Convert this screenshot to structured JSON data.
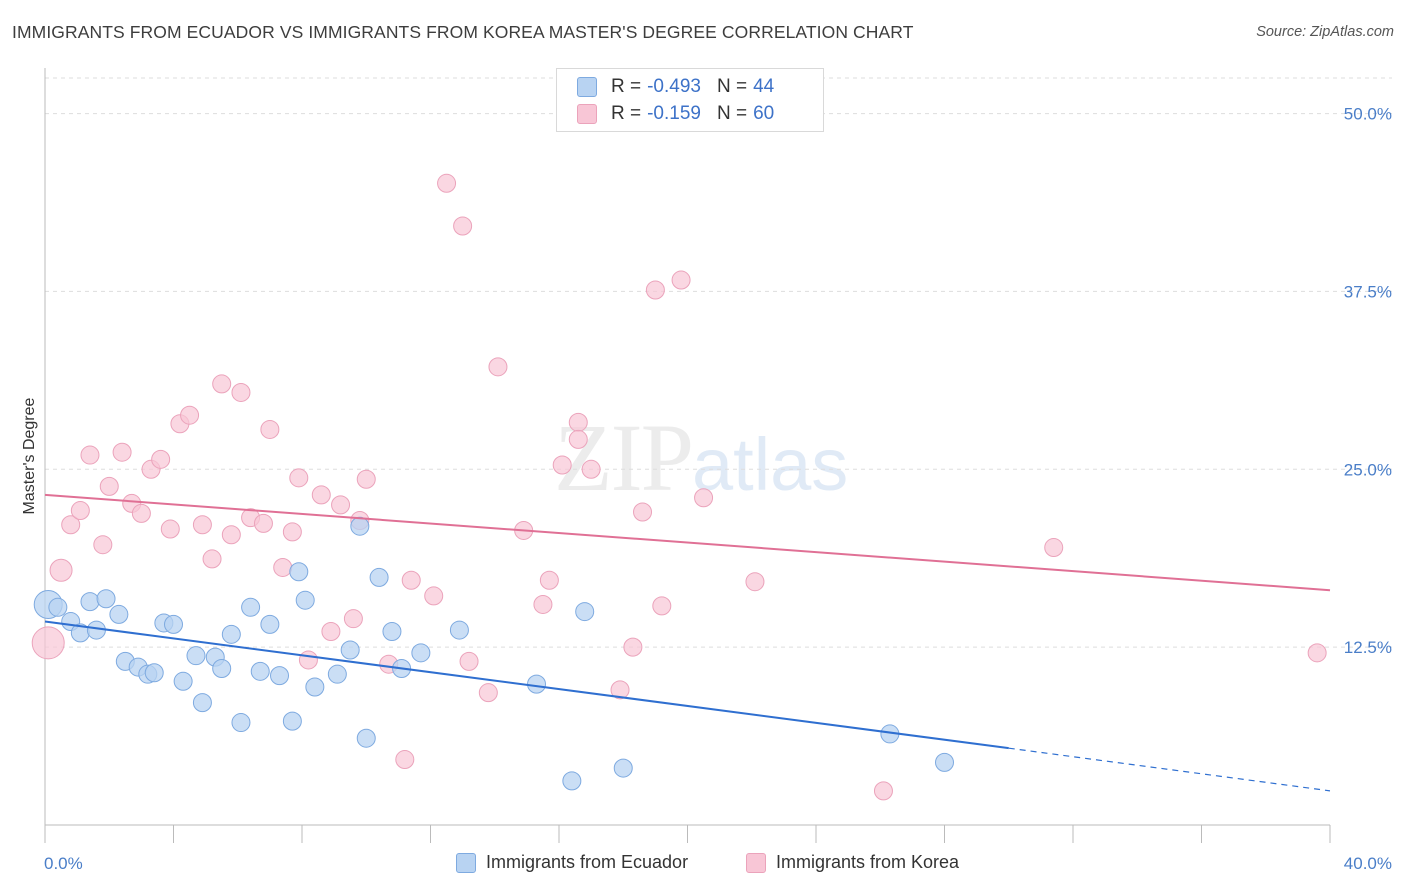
{
  "title": "IMMIGRANTS FROM ECUADOR VS IMMIGRANTS FROM KOREA MASTER'S DEGREE CORRELATION CHART",
  "source": "Source: ZipAtlas.com",
  "watermark": {
    "zip": "ZIP",
    "atlas": "atlas"
  },
  "legend": {
    "ecuador": {
      "r_label": "R =",
      "r_value": "-0.493",
      "n_label": "N =",
      "n_value": "44"
    },
    "korea": {
      "r_label": "R =",
      "r_value": "-0.159",
      "n_label": "N =",
      "n_value": "60"
    }
  },
  "colors": {
    "ecuador_fill": "#b8d3f2",
    "ecuador_stroke": "#7eaae0",
    "ecuador_line": "#2f6fd0",
    "korea_fill": "#f8c6d6",
    "korea_stroke": "#eba3bb",
    "korea_line": "#e07095",
    "tick_label": "#4a7ec8",
    "grid": "#dddddd"
  },
  "chart_data": {
    "type": "scatter",
    "title": "IMMIGRANTS FROM ECUADOR VS IMMIGRANTS FROM KOREA MASTER'S DEGREE CORRELATION CHART",
    "xlabel": "",
    "ylabel": "Master's Degree",
    "xlim": [
      0,
      40
    ],
    "ylim": [
      0,
      52.5
    ],
    "x_tick_labels": [
      "0.0%",
      "40.0%"
    ],
    "y_ticks": [
      12.5,
      25.0,
      37.5,
      50.0
    ],
    "y_tick_labels": [
      "12.5%",
      "25.0%",
      "37.5%",
      "50.0%"
    ],
    "grid": true,
    "legend_position": "top-center",
    "series": [
      {
        "name": "Immigrants from Ecuador",
        "r": -0.493,
        "n": 44,
        "trend": {
          "x0": 0,
          "y0": 14.3,
          "x1": 30,
          "y1": 5.4,
          "dashed_to_x": 40,
          "dashed_to_y": 2.4
        },
        "points": [
          [
            0.1,
            15.5,
            14
          ],
          [
            0.4,
            15.3,
            9
          ],
          [
            0.8,
            14.3,
            9
          ],
          [
            1.1,
            13.5,
            9
          ],
          [
            1.4,
            15.7,
            9
          ],
          [
            1.6,
            13.7,
            9
          ],
          [
            1.9,
            15.9,
            9
          ],
          [
            2.3,
            14.8,
            9
          ],
          [
            2.5,
            11.5,
            9
          ],
          [
            2.9,
            11.1,
            9
          ],
          [
            3.2,
            10.6,
            9
          ],
          [
            3.4,
            10.7,
            9
          ],
          [
            3.7,
            14.2,
            9
          ],
          [
            4.0,
            14.1,
            9
          ],
          [
            4.3,
            10.1,
            9
          ],
          [
            4.7,
            11.9,
            9
          ],
          [
            4.9,
            8.6,
            9
          ],
          [
            5.3,
            11.8,
            9
          ],
          [
            5.5,
            11.0,
            9
          ],
          [
            5.8,
            13.4,
            9
          ],
          [
            6.1,
            7.2,
            9
          ],
          [
            6.4,
            15.3,
            9
          ],
          [
            6.7,
            10.8,
            9
          ],
          [
            7.0,
            14.1,
            9
          ],
          [
            7.3,
            10.5,
            9
          ],
          [
            7.7,
            7.3,
            9
          ],
          [
            7.9,
            17.8,
            9
          ],
          [
            8.1,
            15.8,
            9
          ],
          [
            8.4,
            9.7,
            9
          ],
          [
            9.1,
            10.6,
            9
          ],
          [
            9.5,
            12.3,
            9
          ],
          [
            9.8,
            21.0,
            9
          ],
          [
            10.0,
            6.1,
            9
          ],
          [
            10.4,
            17.4,
            9
          ],
          [
            10.8,
            13.6,
            9
          ],
          [
            11.1,
            11.0,
            9
          ],
          [
            11.7,
            12.1,
            9
          ],
          [
            12.9,
            13.7,
            9
          ],
          [
            15.3,
            9.9,
            9
          ],
          [
            16.4,
            3.1,
            9
          ],
          [
            16.8,
            15.0,
            9
          ],
          [
            18.0,
            4.0,
            9
          ],
          [
            26.3,
            6.4,
            9
          ],
          [
            28.0,
            4.4,
            9
          ]
        ]
      },
      {
        "name": "Immigrants from Korea",
        "r": -0.159,
        "n": 60,
        "trend": {
          "x0": 0,
          "y0": 23.2,
          "x1": 40,
          "y1": 16.5
        },
        "points": [
          [
            0.1,
            12.8,
            16
          ],
          [
            0.5,
            17.9,
            11
          ],
          [
            0.8,
            21.1,
            9
          ],
          [
            1.1,
            22.1,
            9
          ],
          [
            1.4,
            26.0,
            9
          ],
          [
            1.8,
            19.7,
            9
          ],
          [
            2.0,
            23.8,
            9
          ],
          [
            2.4,
            26.2,
            9
          ],
          [
            2.7,
            22.6,
            9
          ],
          [
            3.0,
            21.9,
            9
          ],
          [
            3.3,
            25.0,
            9
          ],
          [
            3.6,
            25.7,
            9
          ],
          [
            3.9,
            20.8,
            9
          ],
          [
            4.2,
            28.2,
            9
          ],
          [
            4.5,
            28.8,
            9
          ],
          [
            4.9,
            21.1,
            9
          ],
          [
            5.2,
            18.7,
            9
          ],
          [
            5.5,
            31.0,
            9
          ],
          [
            5.8,
            20.4,
            9
          ],
          [
            6.1,
            30.4,
            9
          ],
          [
            6.4,
            21.6,
            9
          ],
          [
            6.8,
            21.2,
            9
          ],
          [
            7.0,
            27.8,
            9
          ],
          [
            7.4,
            18.1,
            9
          ],
          [
            7.7,
            20.6,
            9
          ],
          [
            7.9,
            24.4,
            9
          ],
          [
            8.2,
            11.6,
            9
          ],
          [
            8.6,
            23.2,
            9
          ],
          [
            8.9,
            13.6,
            9
          ],
          [
            9.2,
            22.5,
            9
          ],
          [
            9.6,
            14.5,
            9
          ],
          [
            9.8,
            21.4,
            9
          ],
          [
            10.0,
            24.3,
            9
          ],
          [
            10.7,
            11.3,
            9
          ],
          [
            11.2,
            4.6,
            9
          ],
          [
            11.4,
            17.2,
            9
          ],
          [
            12.1,
            16.1,
            9
          ],
          [
            12.5,
            45.1,
            9
          ],
          [
            13.0,
            42.1,
            9
          ],
          [
            13.2,
            11.5,
            9
          ],
          [
            13.8,
            9.3,
            9
          ],
          [
            14.1,
            32.2,
            9
          ],
          [
            14.9,
            20.7,
            9
          ],
          [
            15.5,
            15.5,
            9
          ],
          [
            15.7,
            17.2,
            9
          ],
          [
            16.1,
            25.3,
            9
          ],
          [
            16.6,
            28.3,
            9
          ],
          [
            16.6,
            27.1,
            9
          ],
          [
            17.0,
            25.0,
            9
          ],
          [
            17.9,
            9.5,
            9
          ],
          [
            18.3,
            12.5,
            9
          ],
          [
            18.6,
            22.0,
            9
          ],
          [
            19.0,
            37.6,
            9
          ],
          [
            19.2,
            15.4,
            9
          ],
          [
            19.8,
            38.3,
            9
          ],
          [
            20.5,
            23.0,
            9
          ],
          [
            22.1,
            17.1,
            9
          ],
          [
            26.1,
            2.4,
            9
          ],
          [
            31.4,
            19.5,
            9
          ],
          [
            39.6,
            12.1,
            9
          ]
        ]
      }
    ]
  },
  "bottom_legend": {
    "ecuador": "Immigrants from Ecuador",
    "korea": "Immigrants from Korea"
  }
}
